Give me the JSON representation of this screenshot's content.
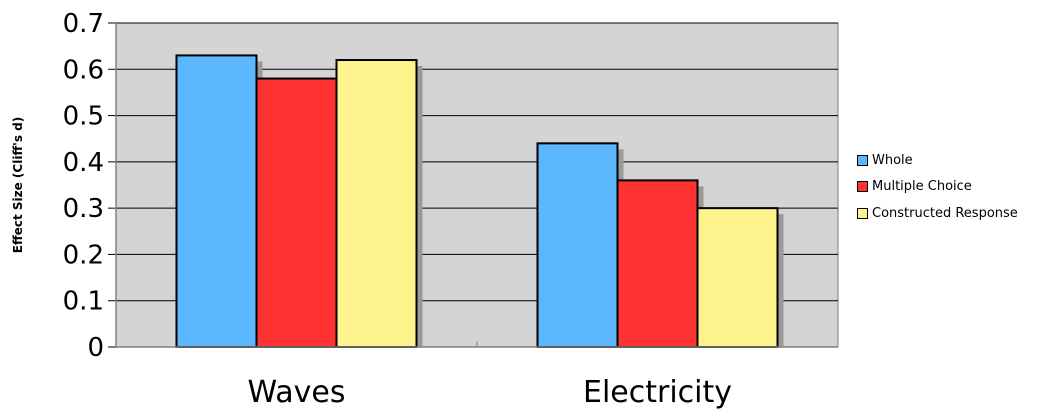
{
  "chart_data": {
    "type": "bar",
    "title": "",
    "xlabel": "",
    "ylabel": "Effect Size (Cliff's d)",
    "ylim": [
      0,
      0.7
    ],
    "yticks": [
      "0",
      "0.1",
      "0.2",
      "0.3",
      "0.4",
      "0.5",
      "0.6",
      "0.7"
    ],
    "categories": [
      "Waves",
      "Electricity"
    ],
    "grid": true,
    "legend_position": "right",
    "series": [
      {
        "name": "Whole",
        "color": "#5bb8ff",
        "values": [
          0.63,
          0.44
        ]
      },
      {
        "name": "Multiple Choice",
        "color": "#ff3333",
        "values": [
          0.58,
          0.36
        ]
      },
      {
        "name": "Constructed Response",
        "color": "#fff38e",
        "values": [
          0.62,
          0.3
        ]
      }
    ],
    "plot_background": "#d4d4d4"
  }
}
